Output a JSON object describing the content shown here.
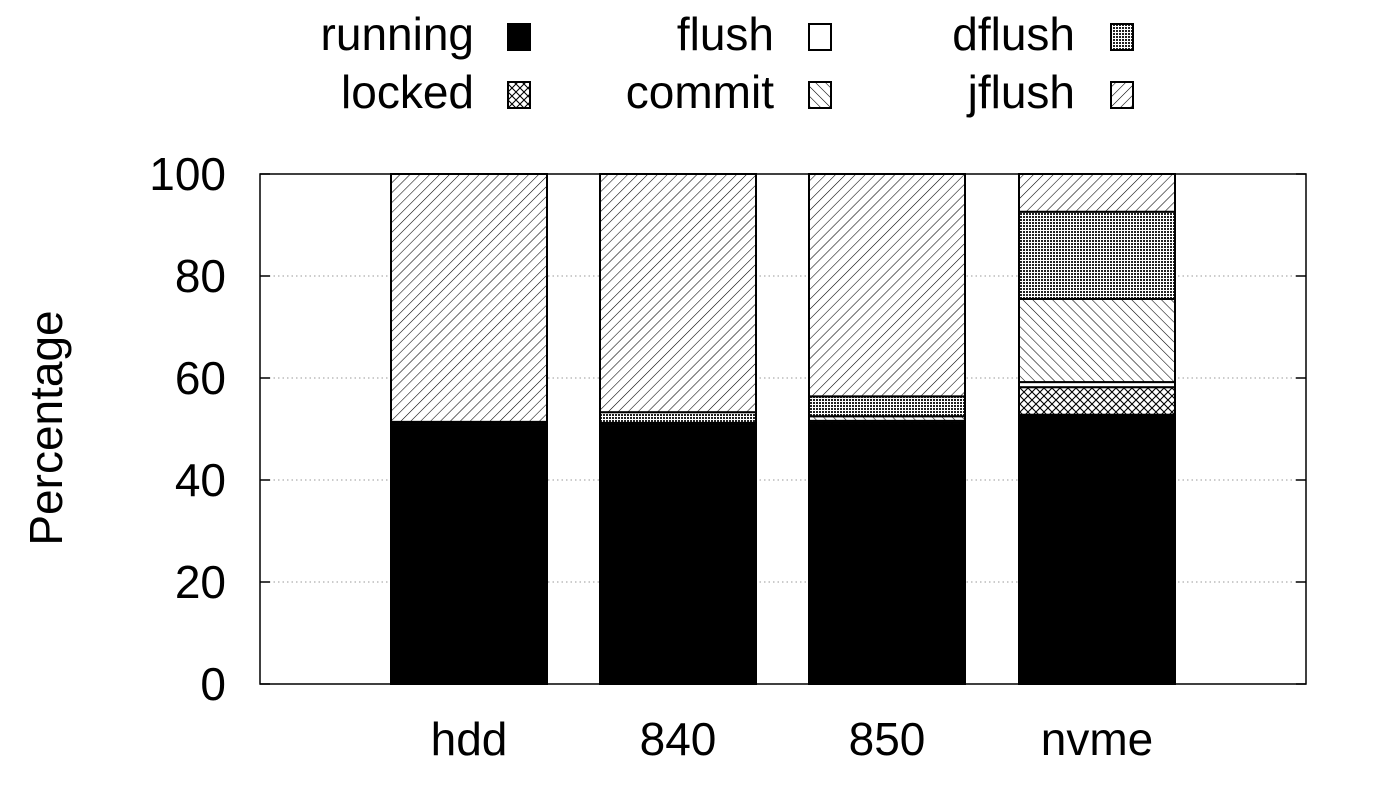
{
  "chart_data": {
    "type": "bar",
    "stacked": true,
    "title": "",
    "xlabel": "",
    "ylabel": "Percentage",
    "ylim": [
      0,
      100
    ],
    "yticks": [
      0,
      20,
      40,
      60,
      80,
      100
    ],
    "grid": true,
    "legend_position": "top",
    "categories": [
      "hdd",
      "840",
      "850",
      "nvme"
    ],
    "series": [
      {
        "name": "running",
        "pattern": "solid-black",
        "values": [
          50.0,
          50.0,
          50.8,
          52.8
        ]
      },
      {
        "name": "locked",
        "pattern": "crosshatch",
        "values": [
          0.4,
          0.4,
          0.4,
          5.4
        ]
      },
      {
        "name": "flush",
        "pattern": "white",
        "values": [
          0.4,
          0.4,
          0.4,
          1.0
        ]
      },
      {
        "name": "commit",
        "pattern": "backslash-hatch",
        "values": [
          0.4,
          0.4,
          0.9,
          16.3
        ]
      },
      {
        "name": "dflush",
        "pattern": "dense-dots",
        "values": [
          0.2,
          2.1,
          3.9,
          17.1
        ]
      },
      {
        "name": "jflush",
        "pattern": "slash-hatch",
        "values": [
          48.6,
          46.7,
          43.6,
          7.4
        ]
      }
    ],
    "legend": {
      "rows": [
        [
          "running",
          "flush",
          "dflush"
        ],
        [
          "locked",
          "commit",
          "jflush"
        ]
      ]
    }
  }
}
